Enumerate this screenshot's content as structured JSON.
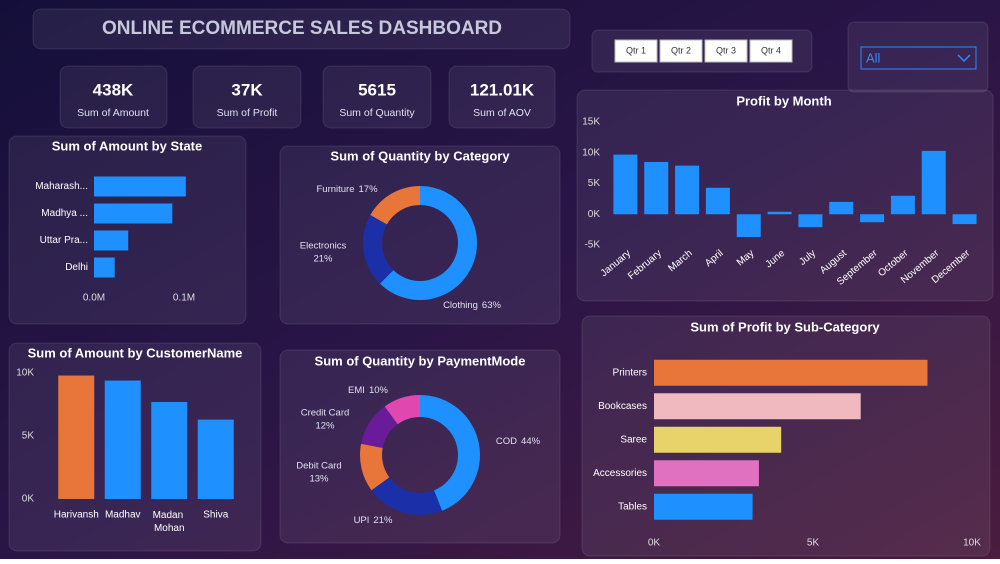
{
  "title": "ONLINE ECOMMERCE SALES DASHBOARD",
  "kpis": [
    {
      "value": "438K",
      "label": "Sum of Amount"
    },
    {
      "value": "37K",
      "label": "Sum of Profit"
    },
    {
      "value": "5615",
      "label": "Sum of Quantity"
    },
    {
      "value": "121.01K",
      "label": "Sum of AOV"
    }
  ],
  "slicer": {
    "options": [
      "Qtr 1",
      "Qtr 2",
      "Qtr 3",
      "Qtr 4"
    ]
  },
  "dropdown": {
    "selected": "All"
  },
  "chart_data": [
    {
      "type": "bar",
      "horizontal": true,
      "title": "Sum of Amount by State",
      "categories": [
        "Maharash...",
        "Madhya ...",
        "Uttar Pra...",
        "Delhi"
      ],
      "values": [
        102000,
        87000,
        38000,
        23000
      ],
      "color": "#1e90ff",
      "xlim": [
        0,
        105000
      ],
      "xticks": [
        {
          "value": 0,
          "label": "0.0M"
        },
        {
          "value": 100000,
          "label": "0.1M"
        }
      ]
    },
    {
      "type": "donut",
      "title": "Sum of Quantity by Category",
      "categories": [
        "Clothing",
        "Electronics",
        "Furniture"
      ],
      "values": [
        63,
        21,
        17
      ],
      "value_labels": [
        "63%",
        "21%",
        "17%"
      ],
      "colors": [
        "#1e90ff",
        "#1b2fa8",
        "#e8763a"
      ]
    },
    {
      "type": "bar",
      "title": "Profit by Month",
      "categories": [
        "January",
        "February",
        "March",
        "April",
        "May",
        "June",
        "July",
        "August",
        "September",
        "October",
        "November",
        "December"
      ],
      "values": [
        9700,
        8500,
        7900,
        4300,
        -3700,
        400,
        -2100,
        2000,
        -1300,
        3000,
        10300,
        -1600
      ],
      "color": "#1e90ff",
      "ylim": [
        -5000,
        15000
      ],
      "yticks": [
        {
          "value": -5000,
          "label": "-5K"
        },
        {
          "value": 0,
          "label": "0K"
        },
        {
          "value": 5000,
          "label": "5K"
        },
        {
          "value": 10000,
          "label": "10K"
        },
        {
          "value": 15000,
          "label": "15K"
        }
      ]
    },
    {
      "type": "bar",
      "title": "Sum of Amount by CustomerName",
      "categories": [
        "Harivansh",
        "Madhav",
        "Madan Mohan",
        "Shiva"
      ],
      "values": [
        9800,
        9400,
        7700,
        6300
      ],
      "colors": [
        "#e8763a",
        "#1e90ff",
        "#1e90ff",
        "#1e90ff"
      ],
      "ylim": [
        0,
        10000
      ],
      "yticks": [
        {
          "value": 0,
          "label": "0K"
        },
        {
          "value": 5000,
          "label": "5K"
        },
        {
          "value": 10000,
          "label": "10K"
        }
      ]
    },
    {
      "type": "donut",
      "title": "Sum of Quantity by PaymentMode",
      "categories": [
        "COD",
        "UPI",
        "Debit Card",
        "Credit Card",
        "EMI"
      ],
      "values": [
        44,
        21,
        13,
        12,
        10
      ],
      "value_labels": [
        "44%",
        "21%",
        "13%",
        "12%",
        "10%"
      ],
      "colors": [
        "#1e90ff",
        "#1b2fa8",
        "#e8763a",
        "#6a1b9a",
        "#e048b0"
      ]
    },
    {
      "type": "bar",
      "horizontal": true,
      "title": "Sum of Profit by Sub-Category",
      "categories": [
        "Printers",
        "Bookcases",
        "Saree",
        "Accessories",
        "Tables"
      ],
      "values": [
        8600,
        6500,
        4000,
        3300,
        3100
      ],
      "colors": [
        "#e8763a",
        "#f0b9c0",
        "#e8d36a",
        "#e070c0",
        "#1e90ff"
      ],
      "xlim": [
        0,
        10000
      ],
      "xticks": [
        {
          "value": 0,
          "label": "0K"
        },
        {
          "value": 5000,
          "label": "5K"
        },
        {
          "value": 10000,
          "label": "10K"
        }
      ]
    }
  ]
}
